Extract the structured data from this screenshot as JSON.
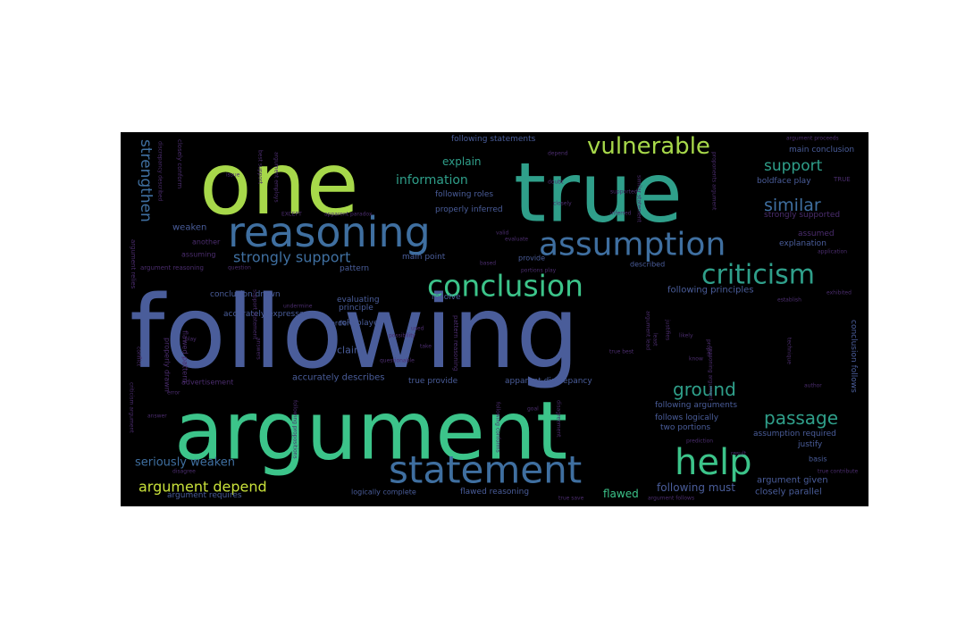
{
  "background": "#000000",
  "palette": {
    "yellow": "#c8e03a",
    "lime": "#a7d84a",
    "green": "#3cc48a",
    "teal": "#2f9f8a",
    "blue": "#3f6fa0",
    "slate": "#4a5d9a",
    "indigo": "#3a4a8a",
    "purple": "#4b2d6e",
    "darkpurple": "#3a1f55"
  },
  "words": [
    {
      "text": "following",
      "color": "slate"
    },
    {
      "text": "argument",
      "color": "green"
    },
    {
      "text": "one",
      "color": "lime"
    },
    {
      "text": "true",
      "color": "teal"
    },
    {
      "text": "reasoning",
      "color": "blue"
    },
    {
      "text": "statement",
      "color": "blue"
    },
    {
      "text": "assumption",
      "color": "blue"
    },
    {
      "text": "conclusion",
      "color": "green"
    },
    {
      "text": "criticism",
      "color": "teal"
    },
    {
      "text": "vulnerable",
      "color": "lime"
    },
    {
      "text": "help",
      "color": "green"
    },
    {
      "text": "ground",
      "color": "teal"
    },
    {
      "text": "passage",
      "color": "teal"
    },
    {
      "text": "strengthen",
      "color": "blue"
    },
    {
      "text": "support",
      "color": "teal"
    },
    {
      "text": "similar",
      "color": "blue"
    },
    {
      "text": "strongly support",
      "color": "blue"
    },
    {
      "text": "argument depend",
      "color": "yellow"
    },
    {
      "text": "seriously weaken",
      "color": "blue"
    },
    {
      "text": "explain",
      "color": "teal"
    },
    {
      "text": "information",
      "color": "teal"
    },
    {
      "text": "flawed",
      "color": "green"
    },
    {
      "text": "following statements",
      "color": "slate"
    },
    {
      "text": "following roles",
      "color": "slate"
    },
    {
      "text": "properly inferred",
      "color": "slate"
    },
    {
      "text": "main conclusion",
      "color": "slate"
    },
    {
      "text": "boldface play",
      "color": "slate"
    },
    {
      "text": "strongly supported",
      "color": "purple"
    },
    {
      "text": "weaken",
      "color": "slate"
    },
    {
      "text": "another",
      "color": "purple"
    },
    {
      "text": "assuming",
      "color": "purple"
    },
    {
      "text": "argument reasoning",
      "color": "purple"
    },
    {
      "text": "assumed",
      "color": "purple"
    },
    {
      "text": "explanation",
      "color": "slate"
    },
    {
      "text": "following principles",
      "color": "slate"
    },
    {
      "text": "described",
      "color": "slate"
    },
    {
      "text": "main point",
      "color": "slate"
    },
    {
      "text": "provide",
      "color": "slate"
    },
    {
      "text": "pattern",
      "color": "slate"
    },
    {
      "text": "conclusion drawn",
      "color": "slate"
    },
    {
      "text": "accurately expresses",
      "color": "slate"
    },
    {
      "text": "evaluating",
      "color": "slate"
    },
    {
      "text": "principle",
      "color": "slate"
    },
    {
      "text": "role played",
      "color": "slate"
    },
    {
      "text": "order",
      "color": "slate"
    },
    {
      "text": "claim",
      "color": "slate"
    },
    {
      "text": "resolve",
      "color": "slate"
    },
    {
      "text": "accurately describes",
      "color": "slate"
    },
    {
      "text": "true provide",
      "color": "slate"
    },
    {
      "text": "apparent discrepancy",
      "color": "slate"
    },
    {
      "text": "advertisement",
      "color": "purple"
    },
    {
      "text": "following arguments",
      "color": "slate"
    },
    {
      "text": "follows logically",
      "color": "slate"
    },
    {
      "text": "two portions",
      "color": "slate"
    },
    {
      "text": "assumption required",
      "color": "slate"
    },
    {
      "text": "justify",
      "color": "slate"
    },
    {
      "text": "basis",
      "color": "slate"
    },
    {
      "text": "conclusion follows",
      "color": "slate"
    },
    {
      "text": "following must",
      "color": "slate"
    },
    {
      "text": "argument given",
      "color": "slate"
    },
    {
      "text": "closely parallel",
      "color": "slate"
    },
    {
      "text": "argument requires",
      "color": "slate"
    },
    {
      "text": "logically complete",
      "color": "slate"
    },
    {
      "text": "flawed reasoning",
      "color": "slate"
    },
    {
      "text": "EXCEPT",
      "color": "purple"
    },
    {
      "text": "apparent paradox",
      "color": "purple"
    },
    {
      "text": "evaluate",
      "color": "purple"
    },
    {
      "text": "questionable",
      "color": "purple"
    },
    {
      "text": "possibility",
      "color": "purple"
    },
    {
      "text": "valid",
      "color": "purple"
    },
    {
      "text": "undermine",
      "color": "purple"
    },
    {
      "text": "establish",
      "color": "purple"
    },
    {
      "text": "inferred",
      "color": "purple"
    },
    {
      "text": "supported",
      "color": "purple"
    },
    {
      "text": "doubt",
      "color": "purple"
    },
    {
      "text": "closely",
      "color": "purple"
    },
    {
      "text": "depend",
      "color": "purple"
    },
    {
      "text": "argument proceeds",
      "color": "purple"
    },
    {
      "text": "application",
      "color": "purple"
    },
    {
      "text": "exhibited",
      "color": "purple"
    },
    {
      "text": "likely",
      "color": "purple"
    },
    {
      "text": "know",
      "color": "purple"
    },
    {
      "text": "true best",
      "color": "purple"
    },
    {
      "text": "author",
      "color": "purple"
    },
    {
      "text": "prediction",
      "color": "purple"
    },
    {
      "text": "result",
      "color": "purple"
    },
    {
      "text": "goal",
      "color": "purple"
    },
    {
      "text": "answer",
      "color": "purple"
    },
    {
      "text": "disagree",
      "color": "purple"
    },
    {
      "text": "error",
      "color": "purple"
    },
    {
      "text": "play",
      "color": "purple"
    },
    {
      "text": "based",
      "color": "purple"
    },
    {
      "text": "used",
      "color": "purple"
    },
    {
      "text": "take",
      "color": "purple"
    },
    {
      "text": "question",
      "color": "purple"
    },
    {
      "text": "issue",
      "color": "purple"
    },
    {
      "text": "flawed pattern",
      "color": "purple"
    },
    {
      "text": "closely conform",
      "color": "purple"
    },
    {
      "text": "portions play",
      "color": "purple"
    },
    {
      "text": "true contribute",
      "color": "purple"
    },
    {
      "text": "argument follows",
      "color": "purple"
    },
    {
      "text": "true save",
      "color": "purple"
    },
    {
      "text": "least",
      "color": "purple"
    },
    {
      "text": "properly drawn",
      "color": "purple"
    },
    {
      "text": "TRUE",
      "color": "purple"
    },
    {
      "text": "following propositions",
      "color": "purple"
    },
    {
      "text": "discrepancy described",
      "color": "purple"
    },
    {
      "text": "conflict",
      "color": "purple"
    },
    {
      "text": "argument employs",
      "color": "purple"
    },
    {
      "text": "following conforms",
      "color": "purple"
    },
    {
      "text": "justifies",
      "color": "purple"
    },
    {
      "text": "criticism argument",
      "color": "purple"
    },
    {
      "text": "support statement",
      "color": "purple"
    },
    {
      "text": "answers",
      "color": "purple"
    },
    {
      "text": "best support",
      "color": "purple"
    },
    {
      "text": "proper",
      "color": "purple"
    },
    {
      "text": "technique",
      "color": "purple"
    },
    {
      "text": "proponents argument",
      "color": "purple"
    },
    {
      "text": "reasoning argument",
      "color": "purple"
    },
    {
      "text": "pattern reasoning",
      "color": "purple"
    },
    {
      "text": "disagreement",
      "color": "purple"
    },
    {
      "text": "argument lead",
      "color": "purple"
    },
    {
      "text": "similar statement",
      "color": "purple"
    },
    {
      "text": "argument relies",
      "color": "purple"
    }
  ]
}
